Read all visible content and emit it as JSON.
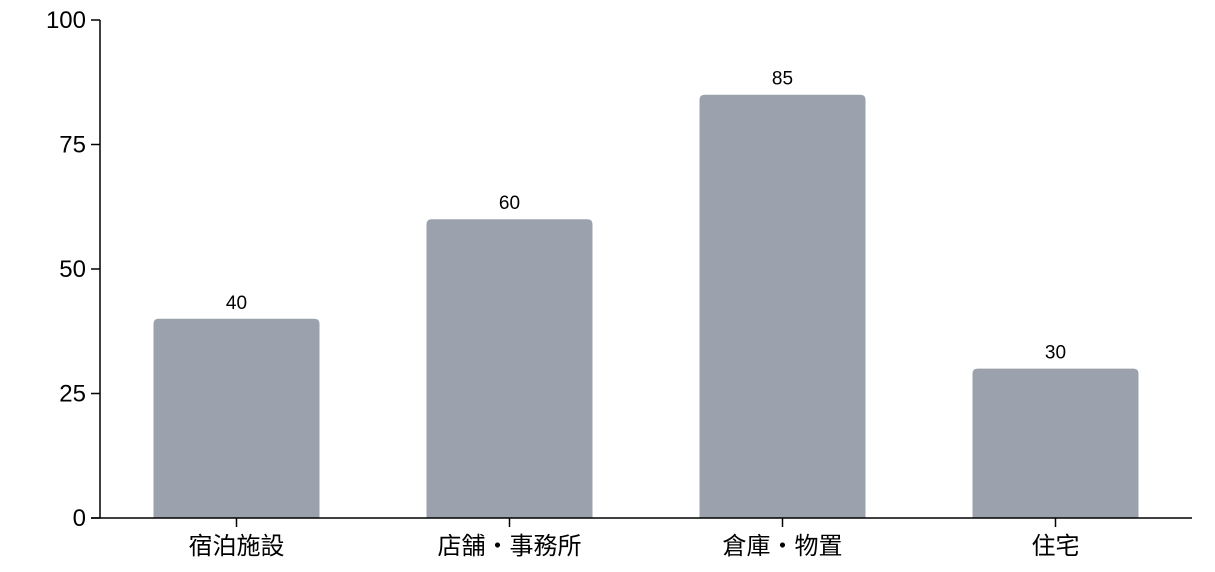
{
  "chart_data": {
    "type": "bar",
    "categories": [
      "宿泊施設",
      "店舗・事務所",
      "倉庫・物置",
      "住宅"
    ],
    "values": [
      40,
      60,
      85,
      30
    ],
    "data_labels": [
      "40",
      "60",
      "85",
      "30"
    ],
    "title": "",
    "xlabel": "",
    "ylabel": "",
    "ylim": [
      0,
      100
    ],
    "yticks": [
      0,
      25,
      50,
      75,
      100
    ],
    "ytick_labels": [
      "0",
      "25",
      "50",
      "75",
      "100"
    ],
    "grid": false,
    "bar_color": "#9ca2ad"
  }
}
